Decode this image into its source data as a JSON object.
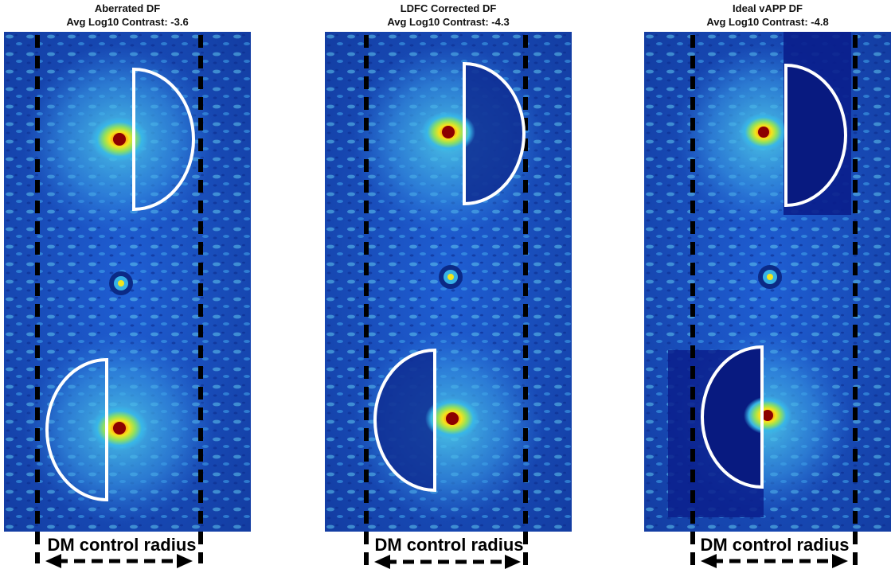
{
  "panels": [
    {
      "title": "Aberrated DF",
      "contrast_line": "Avg Log10 Contrast: -3.6",
      "label": "DM control radius"
    },
    {
      "title": "LDFC Corrected DF",
      "contrast_line": "Avg Log10 Contrast: -4.3",
      "label": "DM control radius"
    },
    {
      "title": "Ideal vAPP DF",
      "contrast_line": "Avg Log10 Contrast: -4.8",
      "label": "DM control radius"
    }
  ],
  "colors": {
    "dark_hole": "#0a1e8c",
    "field": "#1c4fc8",
    "speckle": "#3aa0ea",
    "peak": "#e01010",
    "outline": "#ffffff"
  }
}
